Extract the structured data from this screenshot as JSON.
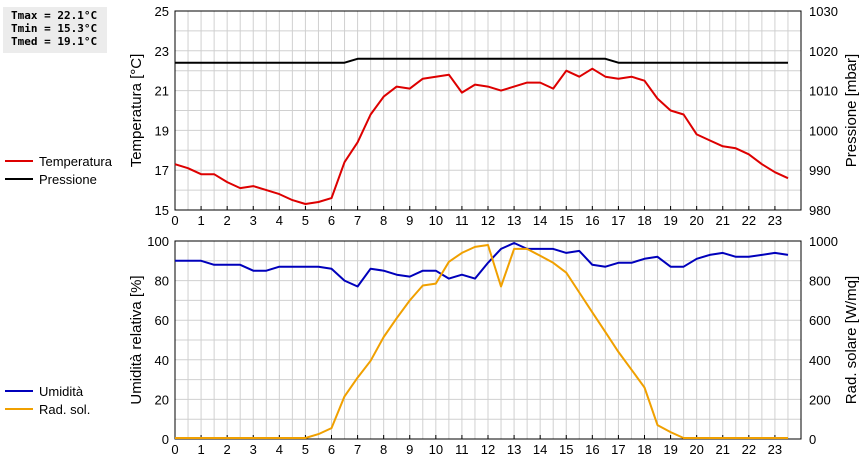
{
  "stats": {
    "tmax": "Tmax = 22.1°C",
    "tmin": "Tmin = 15.3°C",
    "tmed": "Tmed = 19.1°C"
  },
  "colors": {
    "temperature": "#dd0000",
    "pressure": "#000000",
    "humidity": "#0000bb",
    "radiation": "#f0a000",
    "grid": "#d0d0d0"
  },
  "chart_data": [
    {
      "type": "line",
      "x_ticks": [
        "0",
        "1",
        "2",
        "3",
        "4",
        "5",
        "6",
        "7",
        "8",
        "9",
        "10",
        "11",
        "12",
        "13",
        "14",
        "15",
        "16",
        "17",
        "18",
        "19",
        "20",
        "21",
        "22",
        "23"
      ],
      "xlim": [
        0,
        24
      ],
      "ylabel": "Temperatura [°C]",
      "y2label": "Pressione [mbar]",
      "ylim": [
        15,
        25
      ],
      "y_ticks": [
        "15",
        "17",
        "19",
        "21",
        "23",
        "25"
      ],
      "y2lim": [
        980,
        1030
      ],
      "y2_ticks": [
        "980",
        "990",
        "1000",
        "1010",
        "1020",
        "1030"
      ],
      "grid": true,
      "legend": [
        "Temperatura",
        "Pressione"
      ],
      "series": [
        {
          "name": "Temperatura",
          "axis": "left",
          "x": [
            0,
            0.5,
            1,
            1.5,
            2,
            2.5,
            3,
            3.5,
            4,
            4.5,
            5,
            5.5,
            6,
            6.5,
            7,
            7.5,
            8,
            8.5,
            9,
            9.5,
            10,
            10.5,
            11,
            11.5,
            12,
            12.5,
            13,
            13.5,
            14,
            14.5,
            15,
            15.5,
            16,
            16.5,
            17,
            17.5,
            18,
            18.5,
            19,
            19.5,
            20,
            20.5,
            21,
            21.5,
            22,
            22.5,
            23,
            23.5
          ],
          "values": [
            17.3,
            17.1,
            16.8,
            16.8,
            16.4,
            16.1,
            16.2,
            16.0,
            15.8,
            15.5,
            15.3,
            15.4,
            15.6,
            17.4,
            18.4,
            19.8,
            20.7,
            21.2,
            21.1,
            21.6,
            21.7,
            21.8,
            20.9,
            21.3,
            21.2,
            21.0,
            21.2,
            21.4,
            21.4,
            21.1,
            22.0,
            21.7,
            22.1,
            21.7,
            21.6,
            21.7,
            21.5,
            20.6,
            20.0,
            19.8,
            18.8,
            18.5,
            18.2,
            18.1,
            17.8,
            17.3,
            16.9,
            16.6
          ]
        },
        {
          "name": "Pressione",
          "axis": "right",
          "x": [
            0,
            6.5,
            7,
            16.5,
            17,
            23.5
          ],
          "values": [
            1017,
            1017,
            1018,
            1018,
            1017,
            1017
          ]
        }
      ]
    },
    {
      "type": "line",
      "x_ticks": [
        "0",
        "1",
        "2",
        "3",
        "4",
        "5",
        "6",
        "7",
        "8",
        "9",
        "10",
        "11",
        "12",
        "13",
        "14",
        "15",
        "16",
        "17",
        "18",
        "19",
        "20",
        "21",
        "22",
        "23"
      ],
      "xlim": [
        0,
        24
      ],
      "ylabel": "Umidità relativa [%]",
      "y2label": "Rad. solare [W/mq]",
      "ylim": [
        0,
        100
      ],
      "y_ticks": [
        "0",
        "20",
        "40",
        "60",
        "80",
        "100"
      ],
      "y2lim": [
        0,
        1000
      ],
      "y2_ticks": [
        "0",
        "200",
        "400",
        "600",
        "800",
        "1000"
      ],
      "grid": true,
      "legend": [
        "Umidità",
        "Rad. sol."
      ],
      "series": [
        {
          "name": "Umidità",
          "axis": "left",
          "x": [
            0,
            0.5,
            1,
            1.5,
            2,
            2.5,
            3,
            3.5,
            4,
            4.5,
            5,
            5.5,
            6,
            6.5,
            7,
            7.5,
            8,
            8.5,
            9,
            9.5,
            10,
            10.5,
            11,
            11.5,
            12,
            12.5,
            13,
            13.5,
            14,
            14.5,
            15,
            15.5,
            16,
            16.5,
            17,
            17.5,
            18,
            18.5,
            19,
            19.5,
            20,
            20.5,
            21,
            21.5,
            22,
            22.5,
            23,
            23.5
          ],
          "values": [
            90,
            90,
            90,
            88,
            88,
            88,
            85,
            85,
            87,
            87,
            87,
            87,
            86,
            80,
            77,
            86,
            85,
            83,
            82,
            85,
            85,
            81,
            83,
            81,
            89,
            96,
            99,
            96,
            96,
            96,
            94,
            95,
            88,
            87,
            89,
            89,
            91,
            92,
            87,
            87,
            91,
            93,
            94,
            92,
            92,
            93,
            94,
            93
          ]
        },
        {
          "name": "Rad. sol.",
          "axis": "right",
          "x": [
            0,
            0.5,
            1,
            1.5,
            2,
            2.5,
            3,
            3.5,
            4,
            4.5,
            5,
            5.5,
            6,
            6.5,
            7,
            7.5,
            8,
            8.5,
            9,
            9.5,
            10,
            10.5,
            11,
            11.5,
            12,
            12.5,
            13,
            13.5,
            14,
            14.5,
            15,
            15.5,
            16,
            16.5,
            17,
            17.5,
            18,
            18.5,
            19,
            19.5,
            20,
            20.5,
            21,
            21.5,
            22,
            22.5,
            23,
            23.5
          ],
          "values": [
            5,
            5,
            5,
            5,
            5,
            5,
            5,
            5,
            5,
            5,
            5,
            25,
            55,
            215,
            310,
            395,
            515,
            610,
            700,
            775,
            785,
            895,
            940,
            970,
            980,
            770,
            960,
            960,
            925,
            890,
            840,
            740,
            640,
            540,
            440,
            350,
            260,
            70,
            35,
            5,
            5,
            5,
            5,
            5,
            5,
            5,
            5,
            5
          ]
        }
      ]
    }
  ]
}
